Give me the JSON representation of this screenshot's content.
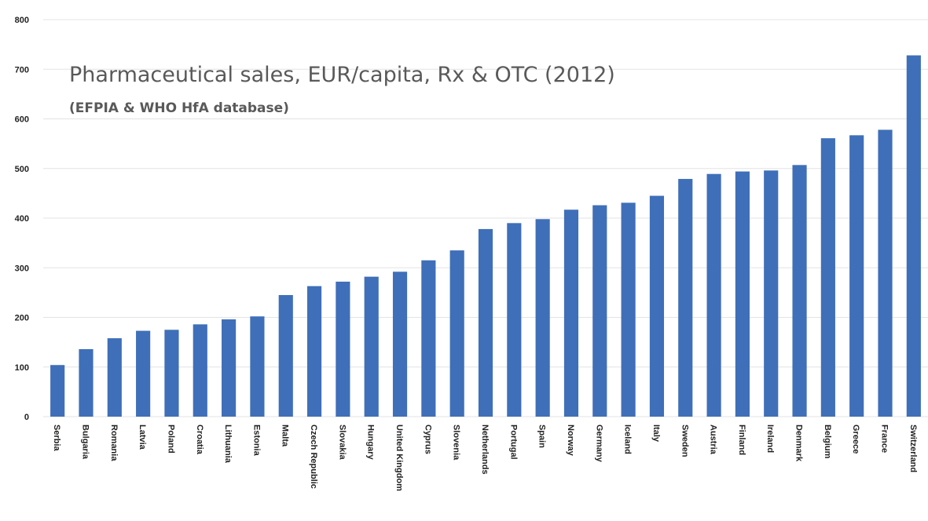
{
  "chart_data": {
    "type": "bar",
    "title": "Pharmaceutical sales, EUR/capita, Rx & OTC (2012)",
    "subtitle": "(EFPIA & WHO HfA database)",
    "xlabel": "",
    "ylabel": "",
    "ylim": [
      0,
      800
    ],
    "yticks": [
      0,
      100,
      200,
      300,
      400,
      500,
      600,
      700,
      800
    ],
    "grid": true,
    "legend": "none",
    "bar_color": "#3f6fb8",
    "categories": [
      "Serbia",
      "Bulgaria",
      "Romania",
      "Latvia",
      "Poland",
      "Croatia",
      "Lithuania",
      "Estonia",
      "Malta",
      "Czech Republic",
      "Slovakia",
      "Hungary",
      "United Kingdom",
      "Cyprus",
      "Slovenia",
      "Netherlands",
      "Portugal",
      "Spain",
      "Norway",
      "Germany",
      "Iceland",
      "Italy",
      "Sweden",
      "Austria",
      "Finland",
      "Ireland",
      "Denmark",
      "Belgium",
      "Greece",
      "France",
      "Switzerland"
    ],
    "values": [
      104,
      136,
      158,
      173,
      175,
      186,
      196,
      202,
      245,
      263,
      272,
      282,
      292,
      315,
      335,
      378,
      390,
      398,
      417,
      426,
      431,
      445,
      479,
      489,
      494,
      496,
      507,
      561,
      567,
      578,
      728
    ]
  }
}
